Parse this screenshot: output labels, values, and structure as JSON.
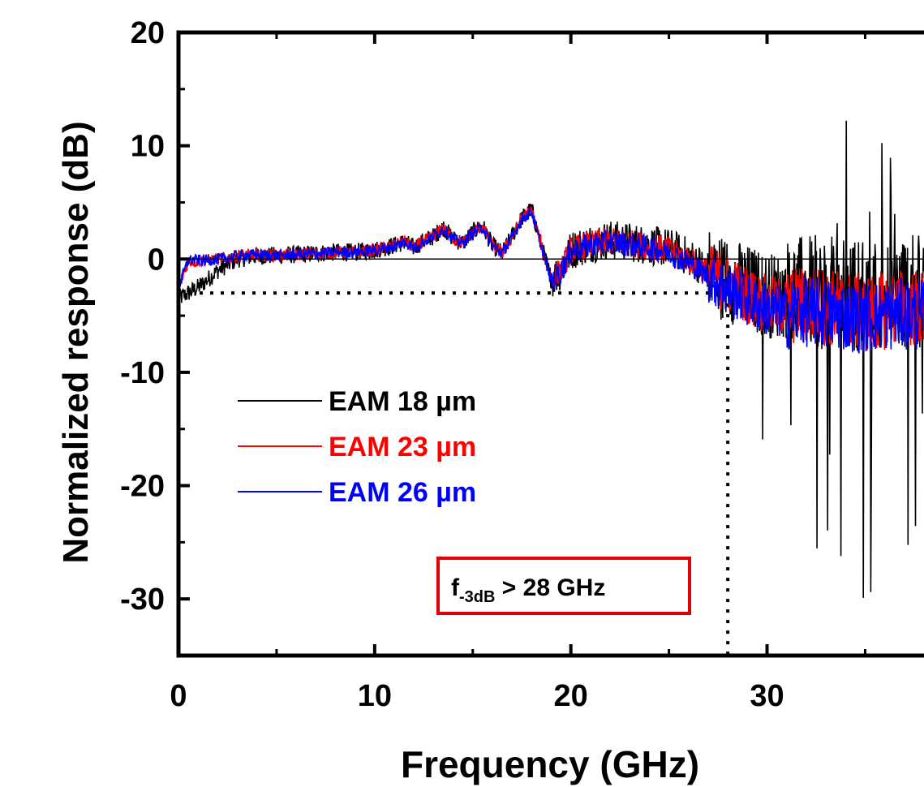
{
  "chart_data": {
    "type": "line",
    "xlabel": "Frequency (GHz)",
    "ylabel": "Normalized response (dB)",
    "xlim": [
      0,
      38
    ],
    "ylim": [
      -35,
      20
    ],
    "x_ticks": [
      "0",
      "10",
      "20",
      "30"
    ],
    "y_ticks": [
      "20",
      "10",
      "0",
      "-10",
      "-20",
      "-30"
    ],
    "legend_position": "middle-left",
    "reference_lines": {
      "zero_db": 0,
      "minus_3db": -3,
      "cutoff_ghz": 28
    },
    "annotation": {
      "main": "f",
      "subscript": "-3dB",
      "rest": " > 28 GHz",
      "border_color": "#e00000"
    },
    "series": [
      {
        "name": "EAM 18 µm",
        "color": "#000000",
        "x": [
          0,
          0.5,
          1,
          1.5,
          2,
          2.5,
          3,
          4,
          5,
          6,
          7,
          8,
          9,
          10,
          11,
          11.5,
          12,
          12.5,
          13,
          13.5,
          14,
          14.5,
          15,
          15.5,
          16,
          16.5,
          17,
          17.5,
          18,
          18.5,
          19,
          19.5,
          20,
          21,
          22,
          23,
          24,
          25,
          26,
          27,
          28,
          29,
          30,
          31,
          32,
          33,
          34,
          35,
          36,
          37,
          38
        ],
        "y": [
          -3.5,
          -3,
          -2.5,
          -1.8,
          -1,
          -0.5,
          0,
          0.3,
          0.3,
          0.4,
          0.5,
          0.6,
          0.6,
          0.8,
          1.2,
          1.5,
          1,
          1.6,
          2,
          2.8,
          1.8,
          1.4,
          2.4,
          2.9,
          1.2,
          0.5,
          2,
          3.6,
          4.4,
          1.2,
          -1.8,
          -1,
          0.8,
          1.4,
          1.7,
          1.5,
          1.2,
          1,
          0.2,
          -1,
          -1.8,
          -2.5,
          -3.2,
          -3.2,
          -3,
          -3,
          -3,
          -3.2,
          -3,
          -2.8,
          -3
        ]
      },
      {
        "name": "EAM 23 µm",
        "color": "#ff0000",
        "x": [
          0,
          0.5,
          1,
          1.5,
          2,
          2.5,
          3,
          4,
          5,
          6,
          7,
          8,
          9,
          10,
          11,
          11.5,
          12,
          12.5,
          13,
          13.5,
          14,
          14.5,
          15,
          15.5,
          16,
          16.5,
          17,
          17.5,
          18,
          18.5,
          19,
          19.5,
          20,
          21,
          22,
          23,
          24,
          25,
          26,
          27,
          28,
          29,
          30,
          31,
          32,
          33,
          34,
          35,
          36,
          37,
          38
        ],
        "y": [
          -2.5,
          -0.2,
          -0.2,
          -0.1,
          0,
          0.1,
          0.3,
          0.4,
          0.3,
          0.4,
          0.5,
          0.6,
          0.6,
          0.8,
          1.2,
          1.6,
          1,
          1.6,
          2,
          2.8,
          1.8,
          1.4,
          2.4,
          2.9,
          1.2,
          0.5,
          2,
          3.6,
          4.3,
          1.2,
          -1.8,
          -1,
          0.8,
          1.3,
          1.6,
          1.4,
          1.1,
          0.8,
          0,
          -1.2,
          -2.2,
          -3.2,
          -4,
          -4.2,
          -4,
          -4.2,
          -4.5,
          -4.8,
          -4.5,
          -4.2,
          -4.5
        ]
      },
      {
        "name": "EAM 26 µm",
        "color": "#0000ff",
        "x": [
          0,
          0.5,
          1,
          1.5,
          2,
          2.5,
          3,
          4,
          5,
          6,
          7,
          8,
          9,
          10,
          11,
          11.5,
          12,
          12.5,
          13,
          13.5,
          14,
          14.5,
          15,
          15.5,
          16,
          16.5,
          17,
          17.5,
          18,
          18.5,
          19,
          19.5,
          20,
          21,
          22,
          23,
          24,
          25,
          26,
          27,
          28,
          29,
          30,
          31,
          32,
          33,
          34,
          35,
          36,
          37,
          38
        ],
        "y": [
          -2.5,
          -0.1,
          -0.1,
          -0.1,
          0,
          0.1,
          0.3,
          0.4,
          0.3,
          0.4,
          0.5,
          0.6,
          0.6,
          0.8,
          1.1,
          1.5,
          1,
          1.5,
          2,
          2.7,
          1.8,
          1.4,
          2.3,
          2.8,
          1.2,
          0.5,
          1.9,
          3.5,
          4.2,
          1.1,
          -2,
          -1.1,
          0.7,
          1.3,
          1.5,
          1.3,
          1,
          0.6,
          -0.3,
          -1.5,
          -2.6,
          -3.6,
          -4.4,
          -4.8,
          -4.6,
          -4.8,
          -5,
          -5.2,
          -5,
          -4.8,
          -5
        ]
      }
    ]
  }
}
